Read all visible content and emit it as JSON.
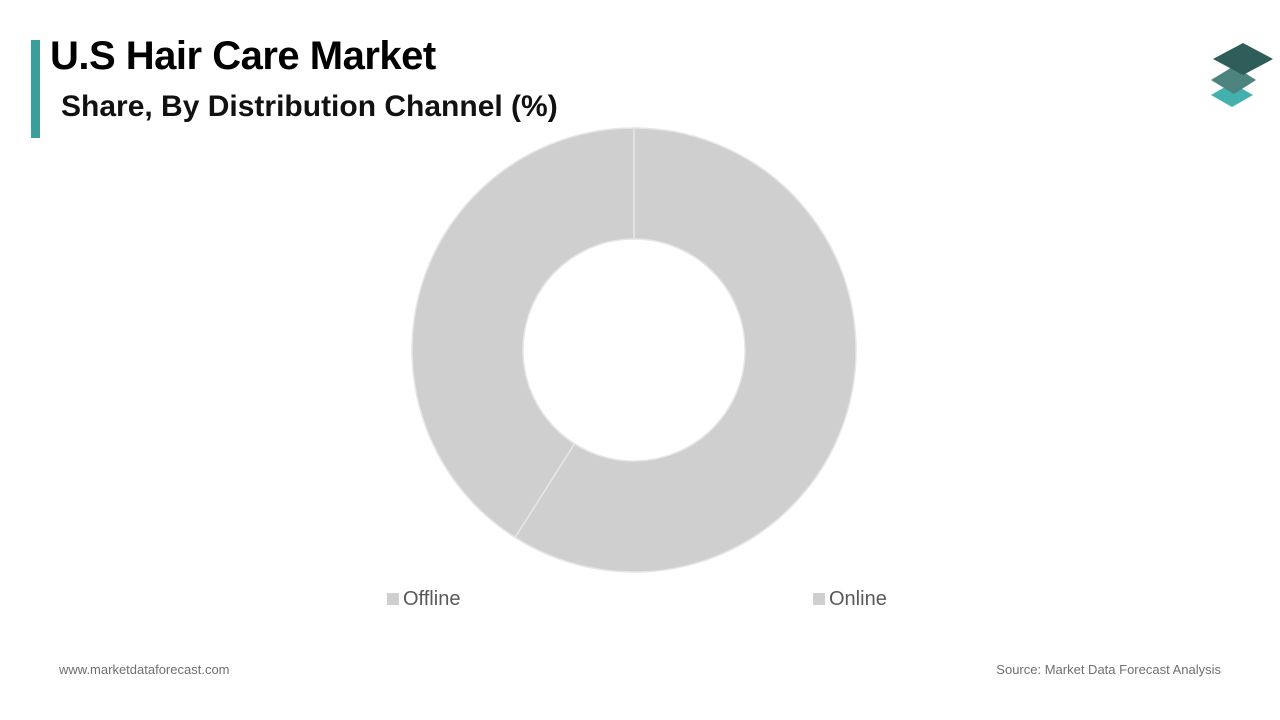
{
  "header": {
    "title": "U.S Hair Care Market",
    "subtitle": "Share, By Distribution Channel (%)"
  },
  "colors": {
    "accent": "#3a9e9a",
    "slice_fill": "#d0cfd0",
    "slice_stroke": "#e6e6e6",
    "logo_dark": "#2f5e5a",
    "logo_mid": "#4d837e",
    "logo_light": "#43b0ad"
  },
  "logo": {
    "icon": "stacked-layers-logo-icon"
  },
  "chart_data": {
    "type": "pie",
    "variant": "donut",
    "categories": [
      "Offline",
      "Online"
    ],
    "values": [
      41,
      59
    ],
    "legend": [
      "Offline",
      "Online"
    ],
    "legend_placement": "bottom"
  },
  "footer": {
    "website": "www.marketdataforecast.com",
    "source": "Source: Market Data Forecast Analysis"
  }
}
